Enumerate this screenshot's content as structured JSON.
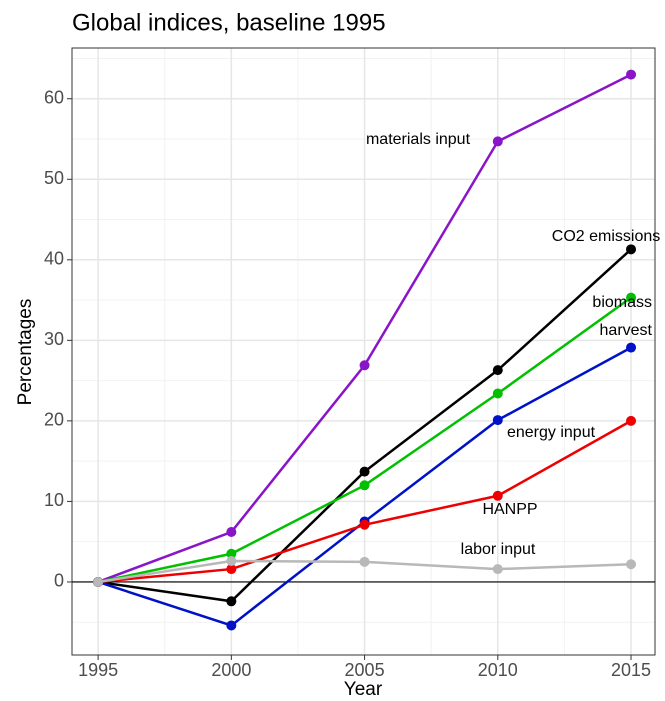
{
  "chart_data": {
    "type": "line",
    "title": "Global indices, baseline 1995",
    "x_label": "Year",
    "y_label": "Percentages",
    "x": [
      1995,
      2000,
      2005,
      2010,
      2015
    ],
    "series": [
      {
        "name": "materials input",
        "color": "#8a14c8",
        "values": [
          0,
          6.2,
          26.9,
          54.7,
          63.0
        ]
      },
      {
        "name": "CO2 emissions",
        "color": "#000000",
        "values": [
          0,
          -2.4,
          13.7,
          26.3,
          41.3
        ]
      },
      {
        "name": "biomass harvest",
        "color": "#00c000",
        "values": [
          0,
          3.5,
          12.0,
          23.4,
          35.3
        ]
      },
      {
        "name": "energy input",
        "color": "#0012c8",
        "values": [
          0,
          -5.4,
          7.5,
          20.1,
          29.1
        ]
      },
      {
        "name": "HANPP",
        "color": "#ee0000",
        "values": [
          0,
          1.6,
          7.1,
          10.7,
          20.0
        ]
      },
      {
        "name": "labor input",
        "color": "#b8b8b8",
        "values": [
          0,
          2.6,
          2.5,
          1.6,
          2.2
        ]
      }
    ],
    "xlim": [
      1994.02,
      2015.9
    ],
    "xticks": [
      1995,
      2000,
      2005,
      2010,
      2015
    ],
    "ylim": [
      -9.07,
      66.3
    ],
    "yticks": [
      0,
      10,
      20,
      30,
      40,
      50,
      60
    ],
    "grid": true,
    "hline": 0
  }
}
